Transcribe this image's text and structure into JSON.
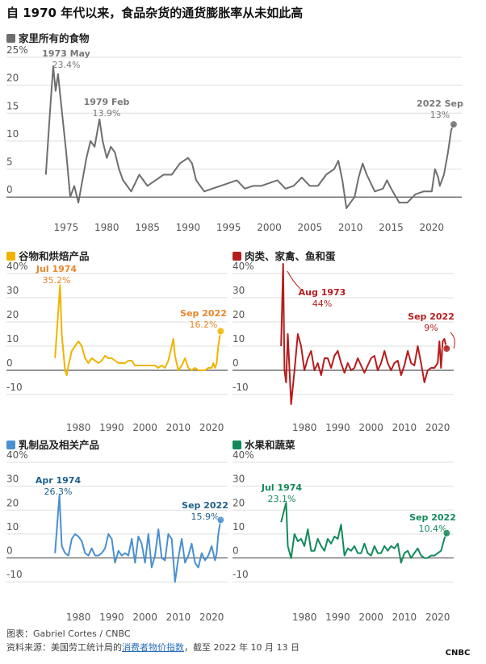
{
  "title": "自 1970 年代以来，食品杂货的通货膨胀率从未如此高",
  "chart_data": [
    {
      "type": "line",
      "title": "家里所有的食物",
      "color": "#6e6e6e",
      "x": [
        1972.5,
        1973,
        1973.4,
        1973.7,
        1974,
        1974.5,
        1975,
        1975.5,
        1976,
        1976.5,
        1977,
        1977.5,
        1978,
        1978.5,
        1979.1,
        1979.5,
        1980,
        1980.5,
        1981,
        1981.5,
        1982,
        1983,
        1984,
        1985,
        1986,
        1987,
        1988,
        1989,
        1990,
        1990.5,
        1991,
        1992,
        1993,
        1994,
        1995,
        1996,
        1997,
        1998,
        1999,
        2000,
        2001,
        2002,
        2003,
        2004,
        2005,
        2006,
        2007,
        2008,
        2008.5,
        2009,
        2009.5,
        2010,
        2010.5,
        2011,
        2011.5,
        2012,
        2013,
        2014,
        2014.5,
        2015,
        2016,
        2017,
        2018,
        2019,
        2020,
        2020.4,
        2020.8,
        2021,
        2021.5,
        2022,
        2022.4,
        2022.7
      ],
      "values": [
        4,
        15,
        23.4,
        19,
        22,
        15,
        8,
        0,
        2,
        -1,
        3,
        7,
        10,
        9,
        13.9,
        10,
        7,
        9,
        8,
        5,
        3,
        1,
        4,
        2,
        3,
        4,
        4,
        6,
        7,
        6,
        3,
        1,
        1.5,
        2,
        2.5,
        3,
        1.5,
        2,
        2,
        2.5,
        3,
        1.5,
        2,
        3.5,
        2,
        2,
        4,
        5,
        6.5,
        3,
        -2,
        -1,
        0,
        3.5,
        6,
        4,
        1,
        1.5,
        3,
        1.5,
        -1,
        -1,
        0.5,
        1,
        1,
        5,
        3.5,
        2,
        4,
        8,
        12,
        13
      ],
      "xlim": [
        1967.65,
        2023.7
      ],
      "xticks": [
        1975,
        1980,
        1985,
        1990,
        1995,
        2000,
        2005,
        2010,
        2015,
        2020
      ],
      "ylim": [
        -3,
        25
      ],
      "yticks": [
        0,
        5,
        10,
        15,
        20,
        {
          "value": 25,
          "label": "25%"
        }
      ],
      "annotations": [
        {
          "label": "1973 May",
          "value_label": "23.4%",
          "x": 1973.4,
          "y": 23.4
        },
        {
          "label": "1979 Feb",
          "value_label": "13.9%",
          "x": 1979.1,
          "y": 13.9
        },
        {
          "label": "2022 Sep",
          "value_label": "13%",
          "x": 2022.7,
          "y": 13
        }
      ]
    },
    {
      "type": "line",
      "title": "谷物和烘焙产品",
      "color": "#f0b400",
      "x": [
        1973,
        1974.5,
        1975,
        1976,
        1976.5,
        1977,
        1978,
        1979,
        1980,
        1981,
        1982,
        1983,
        1984,
        1985,
        1986,
        1987,
        1988,
        1989,
        1990,
        1991,
        1992,
        1993,
        1994,
        1995,
        1996,
        1997,
        1998,
        1999,
        2000,
        2001,
        2002,
        2003,
        2004,
        2005,
        2006,
        2007,
        2008,
        2008.5,
        2009,
        2010,
        2011,
        2012,
        2013,
        2014,
        2015,
        2016,
        2017,
        2018,
        2019,
        2020,
        2020.5,
        2021,
        2021.5,
        2022,
        2022.7
      ],
      "values": [
        5,
        35.2,
        15,
        0,
        -2,
        2,
        8,
        10,
        12,
        10,
        5,
        3,
        5,
        4,
        3,
        4,
        6,
        5,
        5,
        4,
        3,
        3,
        3,
        4,
        4,
        2,
        2,
        2,
        2,
        2,
        2,
        2,
        1,
        2,
        1,
        4,
        10,
        13,
        6,
        0,
        2,
        5,
        1,
        0,
        1,
        0,
        0,
        0,
        1,
        1,
        3,
        1,
        3,
        10,
        16.2
      ],
      "xlim": [
        1958.4,
        2024.8
      ],
      "xticks": [
        1980,
        1990,
        2000,
        2010,
        2020
      ],
      "ylim": [
        -16,
        40
      ],
      "yticks": [
        -10,
        0,
        10,
        20,
        30,
        {
          "value": 40,
          "label": "40%"
        }
      ],
      "annotations": [
        {
          "label": "Jul 1974",
          "value_label": "35.2%",
          "x": 1974.5,
          "y": 35.2
        },
        {
          "label": "Sep 2022",
          "value_label": "16.2%",
          "x": 2022.7,
          "y": 16.2
        }
      ]
    },
    {
      "type": "line",
      "title": "肉类、家禽、鱼和蛋",
      "color": "#b71c1c",
      "x": [
        1973,
        1973.6,
        1974,
        1974.5,
        1975,
        1976,
        1977,
        1978,
        1979,
        1980,
        1981,
        1982,
        1983,
        1984,
        1985,
        1986,
        1987,
        1988,
        1989,
        1990,
        1991,
        1992,
        1993,
        1994,
        1995,
        1996,
        1997,
        1998,
        1999,
        2000,
        2001,
        2002,
        2003,
        2004,
        2005,
        2006,
        2007,
        2008,
        2009,
        2010,
        2011,
        2012,
        2013,
        2014,
        2015,
        2016,
        2017,
        2018,
        2019,
        2020,
        2020.5,
        2021,
        2021.5,
        2022,
        2022.7
      ],
      "values": [
        10,
        44,
        0,
        -5,
        15,
        -14,
        0,
        15,
        10,
        0,
        5,
        8,
        0,
        3,
        -2,
        5,
        5,
        1,
        6,
        8,
        3,
        -1,
        3,
        0,
        1,
        5,
        2,
        -1,
        2,
        5,
        6,
        0,
        3,
        8,
        3,
        0,
        3,
        4,
        -2,
        2,
        8,
        3,
        2,
        10,
        3,
        -5,
        0,
        1,
        1,
        3,
        12,
        1,
        12,
        13,
        9
      ],
      "xlim": [
        1958.4,
        2024.8
      ],
      "xticks": [
        1980,
        1990,
        2000,
        2010,
        2020
      ],
      "ylim": [
        -16,
        40
      ],
      "yticks": [
        -10,
        0,
        10,
        20,
        30,
        {
          "value": 40,
          "label": "40%"
        }
      ],
      "annotations": [
        {
          "label": "Aug 1973",
          "value_label": "44%",
          "x": 1973.6,
          "y": 44
        },
        {
          "label": "Sep 2022",
          "value_label": "9%",
          "x": 2022.7,
          "y": 9
        }
      ]
    },
    {
      "type": "line",
      "title": "乳制品及相关产品",
      "color": "#4a90d0",
      "x": [
        1973,
        1974.3,
        1975,
        1976,
        1977,
        1978,
        1979,
        1980,
        1981,
        1982,
        1983,
        1984,
        1985,
        1986,
        1987,
        1988,
        1989,
        1990,
        1991,
        1992,
        1993,
        1994,
        1995,
        1996,
        1997,
        1998,
        1999,
        2000,
        2001,
        2002,
        2003,
        2004,
        2005,
        2006,
        2007,
        2008,
        2009,
        2010,
        2011,
        2012,
        2013,
        2014,
        2015,
        2016,
        2017,
        2018,
        2019,
        2020,
        2021,
        2021.5,
        2022,
        2022.7
      ],
      "values": [
        2,
        26.3,
        5,
        2,
        1,
        8,
        10,
        9,
        7,
        2,
        1,
        4,
        1,
        1,
        2,
        4,
        10,
        8,
        -2,
        3,
        1,
        2,
        1,
        8,
        -2,
        9,
        6,
        -2,
        10,
        -4,
        1,
        12,
        0,
        -1,
        10,
        8,
        -10,
        0,
        8,
        -2,
        1,
        6,
        -2,
        -4,
        2,
        -1,
        1,
        5,
        -1,
        2,
        10,
        15.9
      ],
      "xlim": [
        1958.4,
        2024.8
      ],
      "xticks": [
        1980,
        1990,
        2000,
        2010,
        2020
      ],
      "ylim": [
        -16,
        40
      ],
      "yticks": [
        -10,
        0,
        10,
        20,
        30,
        {
          "value": 40,
          "label": "40%"
        }
      ],
      "annotations": [
        {
          "label": "Apr 1974",
          "value_label": "26.3%",
          "x": 1974.3,
          "y": 26.3
        },
        {
          "label": "Sep 2022",
          "value_label": "15.9%",
          "x": 2022.7,
          "y": 15.9
        }
      ]
    },
    {
      "type": "line",
      "title": "水果和蔬菜",
      "color": "#138a5a",
      "x": [
        1973,
        1974.5,
        1975,
        1976,
        1977,
        1978,
        1979,
        1980,
        1981,
        1982,
        1983,
        1984,
        1985,
        1986,
        1987,
        1988,
        1989,
        1990,
        1991,
        1992,
        1993,
        1994,
        1995,
        1996,
        1997,
        1998,
        1999,
        2000,
        2001,
        2002,
        2003,
        2004,
        2005,
        2006,
        2007,
        2008,
        2009,
        2010,
        2011,
        2012,
        2013,
        2014,
        2015,
        2016,
        2017,
        2018,
        2019,
        2020,
        2021,
        2022,
        2022.7
      ],
      "values": [
        15,
        23.1,
        5,
        0,
        10,
        7,
        8,
        5,
        12,
        3,
        3,
        8,
        5,
        3,
        8,
        6,
        9,
        8,
        14,
        1,
        4,
        3,
        5,
        2,
        2,
        6,
        2,
        1,
        5,
        2,
        2,
        5,
        3,
        5,
        4,
        6,
        -2,
        2,
        3,
        0,
        2,
        4,
        1,
        0,
        0,
        1,
        1,
        2,
        3,
        8,
        10.4
      ],
      "xlim": [
        1958.4,
        2024.8
      ],
      "xticks": [
        1980,
        1990,
        2000,
        2010,
        2020
      ],
      "ylim": [
        -16,
        40
      ],
      "yticks": [
        -10,
        0,
        10,
        20,
        30,
        {
          "value": 40,
          "label": "40%"
        }
      ],
      "annotations": [
        {
          "label": "Jul 1974",
          "value_label": "23.1%",
          "x": 1974.5,
          "y": 23.1
        },
        {
          "label": "Sep 2022",
          "value_label": "10.4%",
          "x": 2022.7,
          "y": 10.4
        }
      ]
    }
  ],
  "footer": {
    "credit": "图表：Gabriel Cortes / CNBC",
    "source_prefix": "资料来源：美国劳工统计局的",
    "source_link": "消费者物价指数",
    "source_suffix": "，截至 2022 年 10 月 13 日",
    "logo": "CNBC"
  }
}
